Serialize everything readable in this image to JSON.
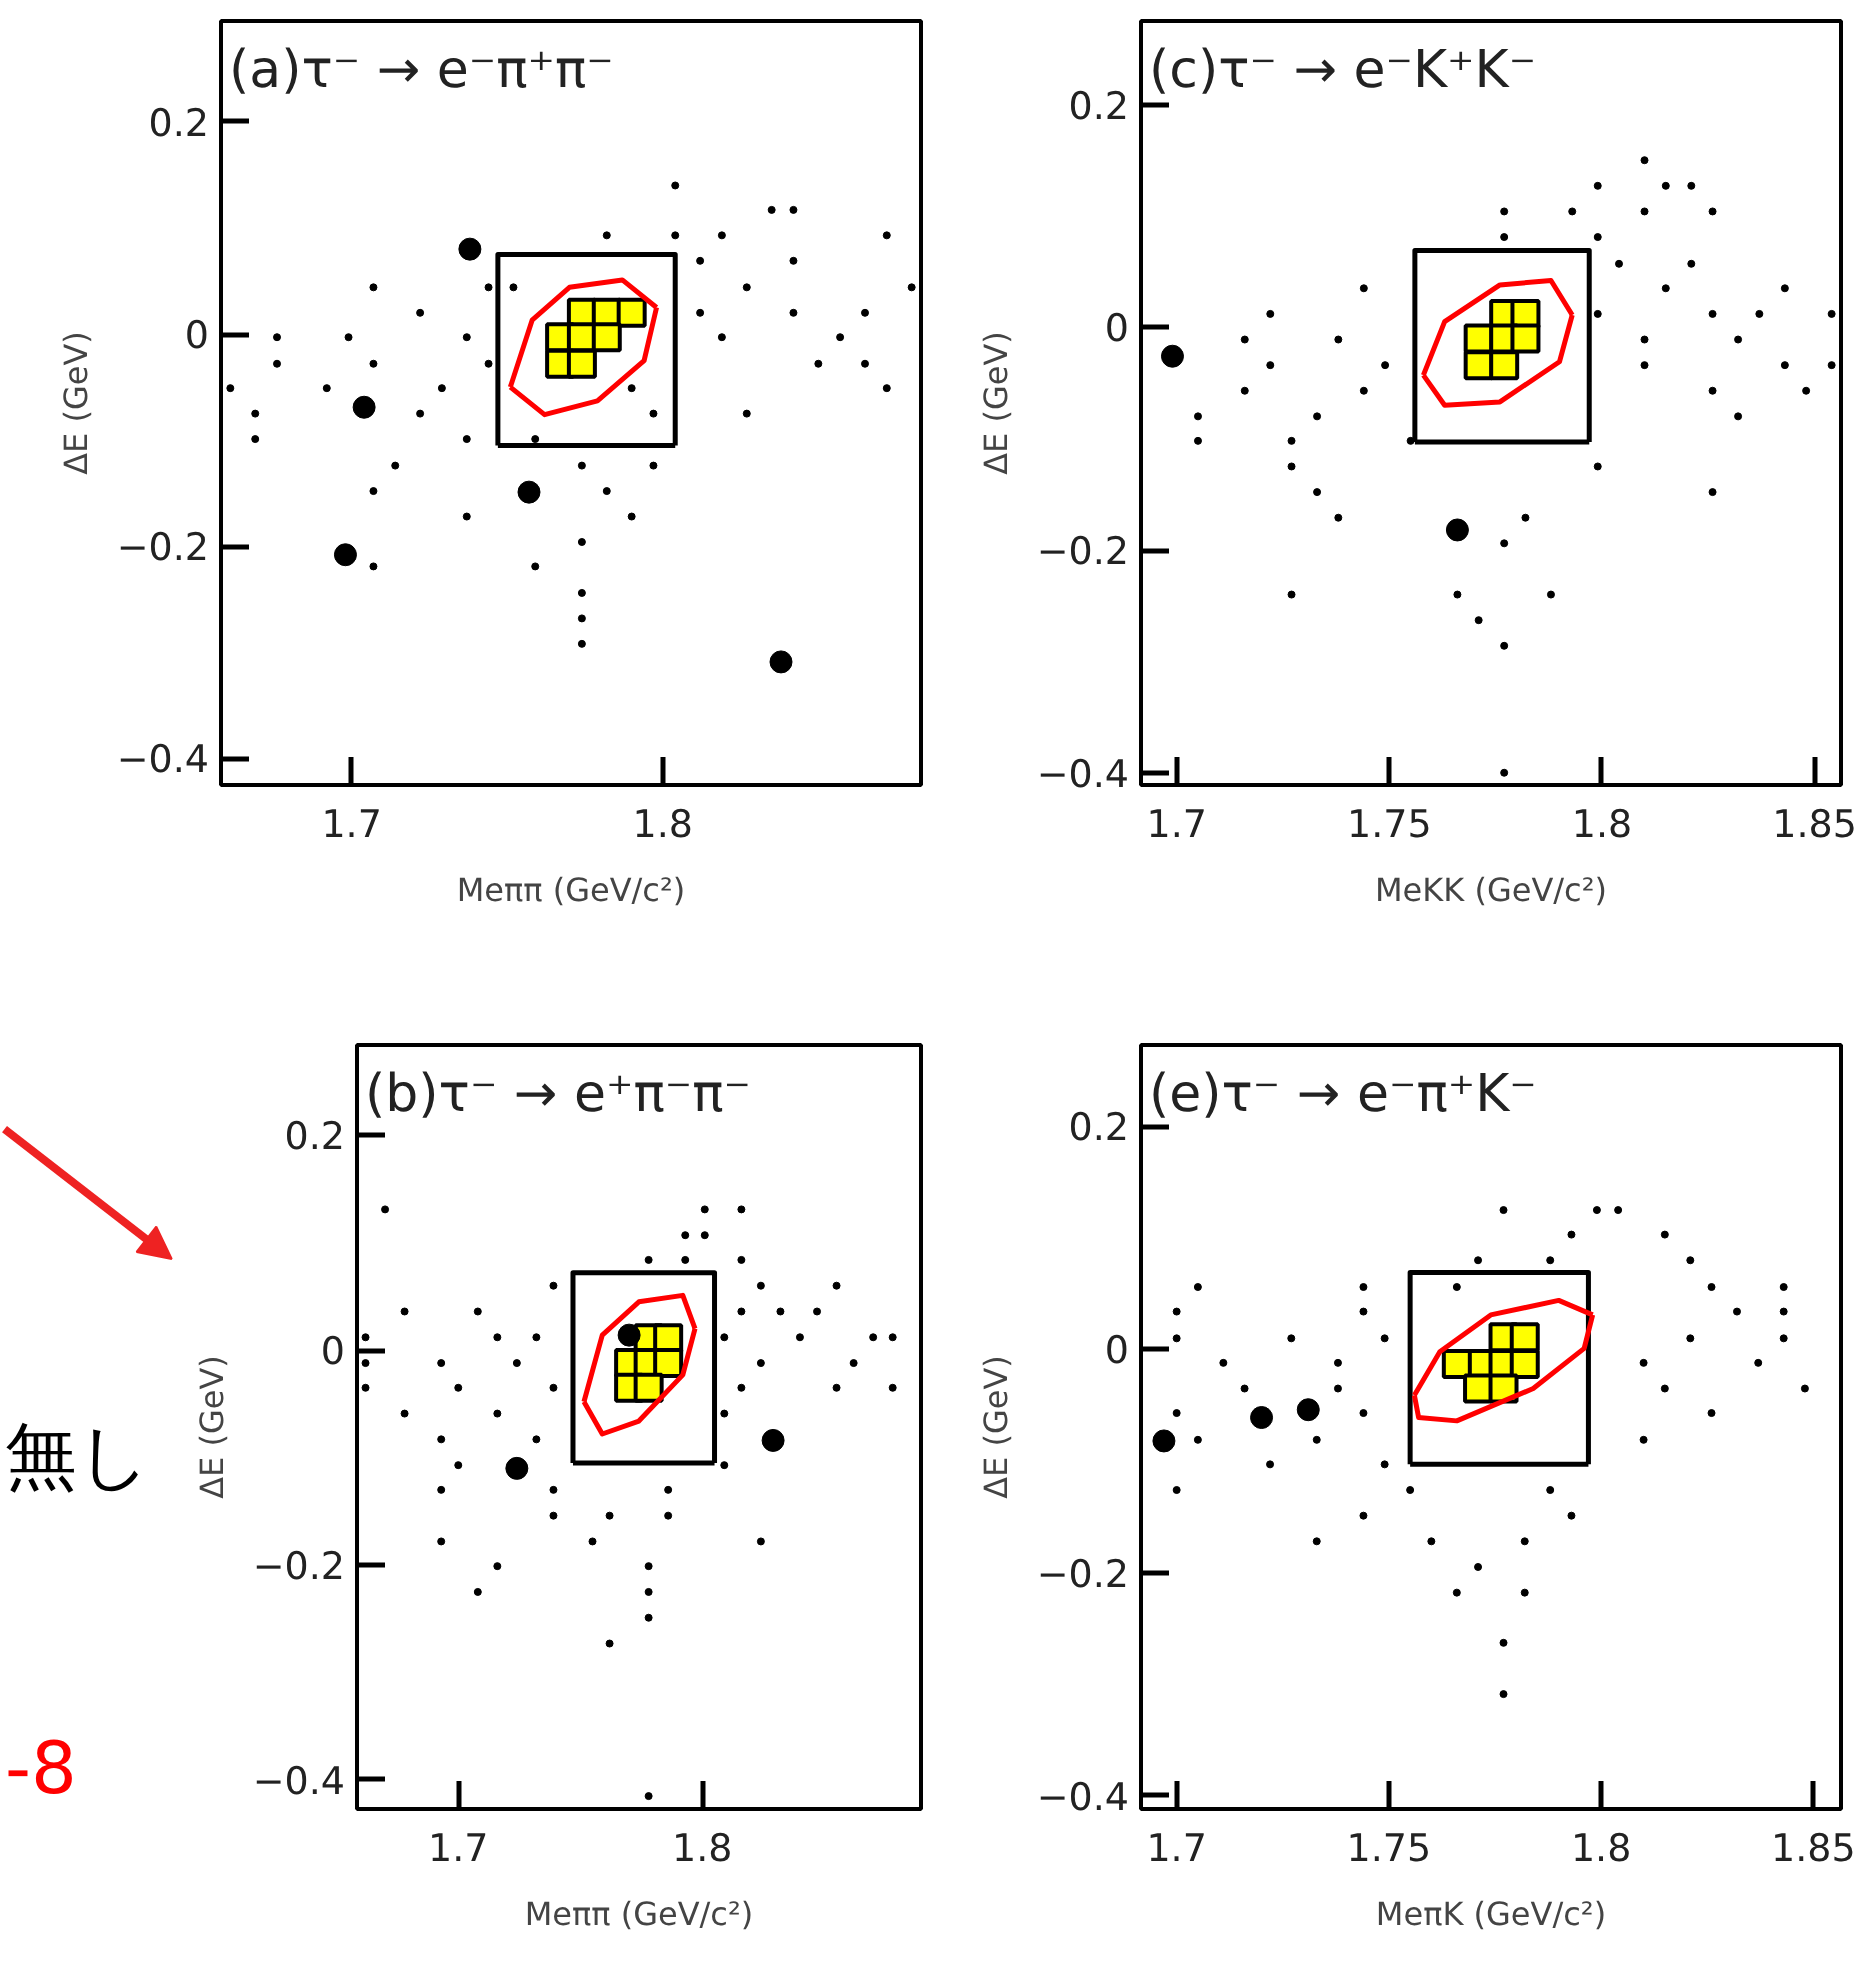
{
  "chart_data": [
    {
      "type": "scatter",
      "title": "(a)τ⁻ → e⁻π⁺π⁻",
      "xlabel": "Meππ (GeV/c²)",
      "ylabel": "ΔE (GeV)",
      "xlim": [
        1.658,
        1.883
      ],
      "ylim": [
        -0.425,
        0.295
      ],
      "xticks": [
        1.7,
        1.8
      ],
      "yticks": [
        0.2,
        0,
        -0.2,
        -0.4
      ],
      "grid": false,
      "series": [
        {
          "marker": "circle",
          "color": "#000000",
          "x": [
            1.804,
            1.835,
            1.842,
            1.782,
            1.804,
            1.819,
            1.872,
            1.812,
            1.842,
            1.707,
            1.744,
            1.752,
            1.827,
            1.88,
            1.722,
            1.812,
            1.842,
            1.865,
            1.676,
            1.699,
            1.737,
            1.819,
            1.857,
            1.676,
            1.707,
            1.744,
            1.85,
            1.865,
            1.661,
            1.692,
            1.729,
            1.79,
            1.872,
            1.669,
            1.722,
            1.797,
            1.827,
            1.669,
            1.737,
            1.759,
            1.714,
            1.774,
            1.797,
            1.707,
            1.782,
            1.737,
            1.79,
            1.774,
            1.707,
            1.759,
            1.774,
            1.774,
            1.774
          ],
          "values": [
            0.14,
            0.117,
            0.117,
            0.093,
            0.093,
            0.093,
            0.093,
            0.069,
            0.069,
            0.044,
            0.044,
            0.044,
            0.044,
            0.044,
            0.02,
            0.02,
            0.02,
            0.02,
            -0.003,
            -0.003,
            -0.003,
            -0.003,
            -0.003,
            -0.028,
            -0.028,
            -0.028,
            -0.028,
            -0.028,
            -0.051,
            -0.051,
            -0.051,
            -0.051,
            -0.051,
            -0.075,
            -0.075,
            -0.075,
            -0.075,
            -0.099,
            -0.099,
            -0.099,
            -0.124,
            -0.124,
            -0.124,
            -0.148,
            -0.148,
            -0.172,
            -0.172,
            -0.196,
            -0.219,
            -0.219,
            -0.244,
            -0.268,
            -0.292
          ]
        },
        {
          "marker": "square",
          "color": "#ffff00",
          "x": [
            1.774,
            1.782,
            1.79,
            1.767,
            1.774,
            1.782,
            1.767,
            1.774
          ],
          "values": [
            0.02,
            0.02,
            0.02,
            -0.003,
            -0.003,
            -0.003,
            -0.028,
            -0.028
          ]
        },
        {
          "type": "line",
          "line_style": "solid",
          "color": "#000000",
          "x": [
            1.747,
            1.747,
            1.804,
            1.804
          ],
          "values": [
            -0.105,
            0.075,
            0.075,
            -0.105
          ]
        },
        {
          "type": "line",
          "line_style": "solid",
          "color": "#000000",
          "x": [
            1.747,
            1.804
          ],
          "values": [
            -0.105,
            -0.105
          ]
        },
        {
          "type": "line",
          "line_style": "solid",
          "color": "#ff0000",
          "x": [
            1.751,
            1.758,
            1.77,
            1.787,
            1.798
          ],
          "values": [
            -0.05,
            0.013,
            0.044,
            0.051,
            0.025
          ]
        },
        {
          "type": "line",
          "line_style": "solid",
          "color": "#ff0000",
          "x": [
            1.751,
            1.762,
            1.779,
            1.794,
            1.798
          ],
          "values": [
            -0.05,
            -0.076,
            -0.063,
            -0.025,
            0.025
          ]
        },
        {
          "marker": "circle",
          "color": "#000000",
          "x": [
            1.738,
            1.704,
            1.757,
            1.698,
            1.838
          ],
          "values": [
            0.08,
            -0.069,
            -0.149,
            -0.208,
            -0.309
          ]
        }
      ]
    },
    {
      "type": "scatter",
      "title": "(c)τ⁻ → e⁻K⁺K⁻",
      "xlabel": "MeKK (GeV/c²)",
      "ylabel": "ΔE (GeV)",
      "xlim": [
        1.6916,
        1.8562
      ],
      "ylim": [
        -0.411,
        0.275
      ],
      "xticks": [
        1.7,
        1.75,
        1.8,
        1.85
      ],
      "yticks": [
        0.2,
        0,
        -0.2,
        -0.4
      ],
      "grid": false,
      "series": [
        {
          "marker": "circle",
          "color": "#000000",
          "x": [
            1.81,
            1.799,
            1.815,
            1.821,
            1.777,
            1.793,
            1.81,
            1.826,
            1.777,
            1.799,
            1.804,
            1.821,
            1.744,
            1.815,
            1.843,
            1.722,
            1.799,
            1.826,
            1.837,
            1.854,
            1.716,
            1.738,
            1.81,
            1.832,
            1.722,
            1.749,
            1.81,
            1.843,
            1.854,
            1.716,
            1.744,
            1.826,
            1.848,
            1.705,
            1.733,
            1.832,
            1.705,
            1.727,
            1.755,
            1.727,
            1.799,
            1.733,
            1.826,
            1.738,
            1.782,
            1.777,
            1.727,
            1.766,
            1.788,
            1.771,
            1.777,
            1.777
          ],
          "values": [
            0.15,
            0.127,
            0.127,
            0.127,
            0.104,
            0.104,
            0.104,
            0.104,
            0.081,
            0.081,
            0.057,
            0.057,
            0.035,
            0.035,
            0.035,
            0.012,
            0.012,
            0.012,
            0.012,
            0.012,
            -0.011,
            -0.011,
            -0.011,
            -0.011,
            -0.034,
            -0.034,
            -0.034,
            -0.034,
            -0.034,
            -0.057,
            -0.057,
            -0.057,
            -0.057,
            -0.08,
            -0.08,
            -0.08,
            -0.102,
            -0.102,
            -0.102,
            -0.125,
            -0.125,
            -0.148,
            -0.148,
            -0.171,
            -0.171,
            -0.194,
            -0.24,
            -0.24,
            -0.24,
            -0.263,
            -0.286,
            -0.4
          ]
        },
        {
          "marker": "square",
          "color": "#ffff00",
          "x": [
            1.777,
            1.782,
            1.771,
            1.777,
            1.782,
            1.771,
            1.777
          ],
          "values": [
            0.012,
            0.012,
            -0.01,
            -0.01,
            -0.01,
            -0.034,
            -0.034
          ]
        },
        {
          "type": "line",
          "line_style": "solid",
          "color": "#000000",
          "x": [
            1.756,
            1.756,
            1.797,
            1.797
          ],
          "values": [
            -0.103,
            0.069,
            0.069,
            -0.103
          ]
        },
        {
          "type": "line",
          "line_style": "solid",
          "color": "#000000",
          "x": [
            1.756,
            1.797
          ],
          "values": [
            -0.103,
            -0.103
          ]
        },
        {
          "type": "line",
          "line_style": "solid",
          "color": "#ff0000",
          "x": [
            1.758,
            1.763,
            1.776,
            1.788,
            1.793
          ],
          "values": [
            -0.043,
            0.005,
            0.038,
            0.042,
            0.011
          ]
        },
        {
          "type": "line",
          "line_style": "solid",
          "color": "#ff0000",
          "x": [
            1.758,
            1.763,
            1.776,
            1.79,
            1.793
          ],
          "values": [
            -0.043,
            -0.07,
            -0.067,
            -0.031,
            0.011
          ]
        },
        {
          "marker": "circle",
          "color": "#000000",
          "x": [
            1.699,
            1.766
          ],
          "values": [
            -0.026,
            -0.182
          ]
        }
      ]
    },
    {
      "type": "scatter",
      "title": "(b)τ⁻ → e⁺π⁻π⁻",
      "xlabel": "Meππ (GeV/c²)",
      "ylabel": "ΔE (GeV)",
      "xlim": [
        1.6585,
        1.8896
      ],
      "ylim": [
        -0.427,
        0.284
      ],
      "xticks": [
        1.7,
        1.8
      ],
      "yticks": [
        0.2,
        0,
        -0.2,
        -0.4
      ],
      "grid": false,
      "annotations": [
        "無し",
        "-8"
      ],
      "series": [
        {
          "marker": "circle",
          "color": "#000000",
          "x": [
            1.67,
            1.801,
            1.816,
            1.793,
            1.801,
            1.778,
            1.793,
            1.816,
            1.739,
            1.824,
            1.855,
            1.678,
            1.708,
            1.816,
            1.832,
            1.847,
            1.662,
            1.716,
            1.732,
            1.809,
            1.84,
            1.87,
            1.878,
            1.662,
            1.693,
            1.724,
            1.824,
            1.862,
            1.662,
            1.7,
            1.739,
            1.816,
            1.855,
            1.878,
            1.678,
            1.716,
            1.809,
            1.693,
            1.732,
            1.7,
            1.809,
            1.693,
            1.739,
            1.786,
            1.739,
            1.762,
            1.786,
            1.693,
            1.755,
            1.824,
            1.716,
            1.778,
            1.708,
            1.778,
            1.778,
            1.762,
            1.778
          ],
          "values": [
            0.131,
            0.131,
            0.131,
            0.107,
            0.107,
            0.084,
            0.084,
            0.084,
            0.06,
            0.06,
            0.06,
            0.036,
            0.036,
            0.036,
            0.036,
            0.036,
            0.012,
            0.012,
            0.012,
            0.012,
            0.012,
            0.012,
            0.012,
            -0.012,
            -0.012,
            -0.012,
            -0.012,
            -0.012,
            -0.035,
            -0.035,
            -0.035,
            -0.035,
            -0.035,
            -0.035,
            -0.059,
            -0.059,
            -0.059,
            -0.083,
            -0.083,
            -0.107,
            -0.107,
            -0.13,
            -0.13,
            -0.13,
            -0.154,
            -0.154,
            -0.154,
            -0.178,
            -0.178,
            -0.178,
            -0.201,
            -0.201,
            -0.225,
            -0.225,
            -0.249,
            -0.273,
            -0.415
          ]
        },
        {
          "marker": "square",
          "color": "#ffff00",
          "x": [
            1.778,
            1.786,
            1.77,
            1.778,
            1.786,
            1.77,
            1.778
          ],
          "values": [
            0.011,
            0.011,
            -0.012,
            -0.012,
            -0.012,
            -0.035,
            -0.035
          ]
        },
        {
          "type": "line",
          "line_style": "solid",
          "color": "#000000",
          "x": [
            1.747,
            1.747,
            1.805,
            1.805
          ],
          "values": [
            -0.105,
            0.072,
            0.072,
            -0.105
          ]
        },
        {
          "type": "line",
          "line_style": "solid",
          "color": "#000000",
          "x": [
            1.747,
            1.805
          ],
          "values": [
            -0.105,
            -0.105
          ]
        },
        {
          "type": "line",
          "line_style": "solid",
          "color": "#ff0000",
          "x": [
            1.7515,
            1.759,
            1.774,
            1.792,
            1.797
          ],
          "values": [
            -0.048,
            0.014,
            0.045,
            0.051,
            0.02
          ]
        },
        {
          "type": "line",
          "line_style": "solid",
          "color": "#ff0000",
          "x": [
            1.7515,
            1.759,
            1.774,
            1.792,
            1.797
          ],
          "values": [
            -0.048,
            -0.078,
            -0.066,
            -0.023,
            0.02
          ]
        },
        {
          "marker": "circle",
          "color": "#000000",
          "x": [
            1.77,
            1.724,
            1.829
          ],
          "values": [
            0.014,
            -0.11,
            -0.084
          ]
        }
      ]
    },
    {
      "type": "scatter",
      "title": "(e)τ⁻ → e⁻π⁺K⁻",
      "xlabel": "MeπK (GeV/c²)",
      "ylabel": "ΔE (GeV)",
      "xlim": [
        1.6916,
        1.8565
      ],
      "ylim": [
        -0.412,
        0.273
      ],
      "xticks": [
        1.7,
        1.75,
        1.8,
        1.85
      ],
      "yticks": [
        0.2,
        0,
        -0.2,
        -0.4
      ],
      "grid": false,
      "series": [
        {
          "marker": "circle",
          "color": "#000000",
          "x": [
            1.777,
            1.799,
            1.804,
            1.793,
            1.815,
            1.771,
            1.788,
            1.821,
            1.705,
            1.744,
            1.766,
            1.826,
            1.843,
            1.7,
            1.744,
            1.832,
            1.843,
            1.7,
            1.727,
            1.749,
            1.821,
            1.843,
            1.711,
            1.738,
            1.81,
            1.837,
            1.716,
            1.738,
            1.815,
            1.848,
            1.7,
            1.744,
            1.826,
            1.705,
            1.733,
            1.81,
            1.722,
            1.749,
            1.7,
            1.755,
            1.788,
            1.744,
            1.793,
            1.733,
            1.76,
            1.782,
            1.771,
            1.766,
            1.782,
            1.777,
            1.777
          ],
          "values": [
            0.125,
            0.125,
            0.125,
            0.103,
            0.103,
            0.08,
            0.08,
            0.08,
            0.056,
            0.056,
            0.056,
            0.056,
            0.056,
            0.034,
            0.034,
            0.034,
            0.034,
            0.01,
            0.01,
            0.01,
            0.01,
            0.01,
            -0.012,
            -0.012,
            -0.012,
            -0.012,
            -0.035,
            -0.035,
            -0.035,
            -0.035,
            -0.057,
            -0.057,
            -0.057,
            -0.081,
            -0.081,
            -0.081,
            -0.103,
            -0.103,
            -0.126,
            -0.126,
            -0.126,
            -0.149,
            -0.149,
            -0.172,
            -0.172,
            -0.172,
            -0.195,
            -0.218,
            -0.218,
            -0.263,
            -0.309
          ]
        },
        {
          "marker": "square",
          "color": "#ffff00",
          "x": [
            1.777,
            1.782,
            1.771,
            1.777,
            1.766,
            1.782,
            1.771,
            1.777
          ],
          "values": [
            0.011,
            0.011,
            -0.013,
            -0.013,
            -0.013,
            -0.013,
            -0.035,
            -0.035
          ]
        },
        {
          "type": "line",
          "line_style": "solid",
          "color": "#000000",
          "x": [
            1.755,
            1.755,
            1.797,
            1.797
          ],
          "values": [
            -0.103,
            0.069,
            0.069,
            -0.103
          ]
        },
        {
          "type": "line",
          "line_style": "solid",
          "color": "#000000",
          "x": [
            1.755,
            1.797
          ],
          "values": [
            -0.103,
            -0.103
          ]
        },
        {
          "type": "line",
          "line_style": "solid",
          "color": "#ff0000",
          "x": [
            1.756,
            1.762,
            1.774,
            1.79,
            1.798
          ],
          "values": [
            -0.041,
            -0.002,
            0.031,
            0.044,
            0.031
          ]
        },
        {
          "type": "line",
          "line_style": "solid",
          "color": "#ff0000",
          "x": [
            1.756,
            1.757,
            1.766,
            1.784,
            1.796,
            1.798
          ],
          "values": [
            -0.041,
            -0.061,
            -0.064,
            -0.035,
            0.001,
            0.031
          ]
        },
        {
          "marker": "circle",
          "color": "#000000",
          "x": [
            1.697,
            1.72,
            1.731
          ],
          "values": [
            -0.082,
            -0.061,
            -0.054
          ]
        }
      ]
    }
  ]
}
